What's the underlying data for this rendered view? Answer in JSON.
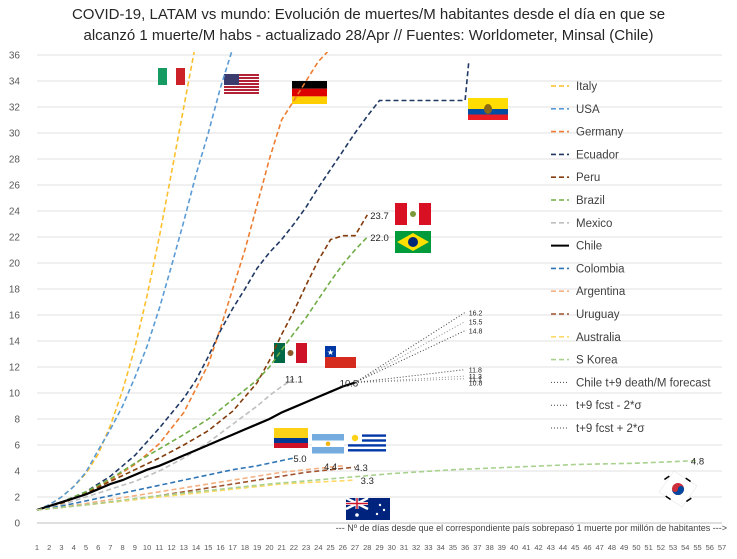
{
  "chart_data": {
    "type": "line",
    "title_line1": "COVID-19, LATAM vs mundo: Evolución de muertes/M habitantes desde el día en que se",
    "title_line2": "alcanzó 1 muerte/M habs - actualizado 28/Apr  // Fuentes: Worldometer, Minsal (Chile)",
    "x_note": "--- Nº de días desde que el correspondiente país sobrepasó 1 muerte por millón de habitantes --->",
    "xlim": [
      1,
      57
    ],
    "ylim": [
      0,
      36
    ],
    "x_ticks": [
      1,
      2,
      3,
      4,
      5,
      6,
      7,
      8,
      9,
      10,
      11,
      12,
      13,
      14,
      15,
      16,
      17,
      18,
      19,
      20,
      21,
      22,
      23,
      24,
      25,
      26,
      27,
      28,
      29,
      30,
      31,
      32,
      33,
      34,
      35,
      36,
      37,
      38,
      39,
      40,
      41,
      42,
      43,
      44,
      45,
      46,
      47,
      48,
      49,
      50,
      51,
      52,
      53,
      54,
      55,
      56,
      57
    ],
    "y_ticks": [
      0,
      2,
      4,
      6,
      8,
      10,
      12,
      14,
      16,
      18,
      20,
      22,
      24,
      26,
      28,
      30,
      32,
      34,
      36
    ],
    "series": [
      {
        "name": "Italy",
        "color": "#fbbf2c",
        "style": "dash",
        "x": [
          1,
          2,
          3,
          4,
          5,
          6,
          7,
          8,
          9,
          10,
          11,
          12,
          13,
          14
        ],
        "y": [
          1.0,
          1.4,
          2.0,
          2.8,
          3.8,
          5.3,
          7.5,
          10.2,
          13.5,
          17.5,
          22.0,
          27.0,
          32.0,
          37.0
        ]
      },
      {
        "name": "USA",
        "color": "#5b9bd5",
        "style": "dash",
        "x": [
          1,
          2,
          3,
          4,
          5,
          6,
          7,
          8,
          9,
          10,
          11,
          12,
          13,
          14,
          15,
          16,
          17
        ],
        "y": [
          1.0,
          1.4,
          2.0,
          2.8,
          3.9,
          5.6,
          7.2,
          9.0,
          11.2,
          13.6,
          16.5,
          19.8,
          23.2,
          26.8,
          30.0,
          33.5,
          36.5
        ]
      },
      {
        "name": "Germany",
        "color": "#ed7d31",
        "style": "dash",
        "x": [
          1,
          3,
          5,
          7,
          9,
          11,
          13,
          15,
          16,
          17,
          18,
          19,
          20,
          21,
          22,
          23,
          24,
          25
        ],
        "y": [
          1.0,
          1.5,
          2.3,
          3.3,
          4.5,
          6.1,
          8.5,
          12.2,
          15.0,
          18.0,
          21.0,
          24.5,
          28.0,
          31.0,
          32.5,
          34.0,
          35.5,
          36.5
        ]
      },
      {
        "name": "Ecuador",
        "color": "#203864",
        "style": "dash",
        "x": [
          1,
          3,
          5,
          7,
          9,
          11,
          13,
          14,
          15,
          16,
          17,
          18,
          19,
          20,
          21,
          22,
          23,
          24,
          25,
          26,
          27,
          28,
          29,
          30,
          31,
          32,
          33,
          34,
          35,
          36,
          36.3
        ],
        "y": [
          1.0,
          1.6,
          2.4,
          3.6,
          5.2,
          7.3,
          9.6,
          11.0,
          12.8,
          14.8,
          16.5,
          18.0,
          19.6,
          20.8,
          21.8,
          23.0,
          24.3,
          25.8,
          27.2,
          28.6,
          30.0,
          31.3,
          32.5,
          32.5,
          32.5,
          32.5,
          32.5,
          32.5,
          32.5,
          32.5,
          35.5
        ]
      },
      {
        "name": "Peru",
        "color": "#843c0c",
        "style": "dash",
        "x": [
          1,
          3,
          5,
          7,
          9,
          11,
          13,
          15,
          17,
          19,
          20,
          21,
          22,
          23,
          24,
          25,
          26,
          27,
          28
        ],
        "y": [
          1.0,
          1.5,
          2.3,
          3.2,
          4.1,
          5.0,
          6.0,
          7.1,
          8.6,
          10.8,
          12.5,
          14.5,
          16.3,
          18.3,
          20.2,
          21.8,
          22.1,
          22.1,
          23.7
        ]
      },
      {
        "name": "Brazil",
        "color": "#70ad47",
        "style": "dash",
        "x": [
          1,
          3,
          5,
          7,
          9,
          11,
          13,
          15,
          17,
          19,
          20,
          21,
          22,
          23,
          24,
          25,
          26,
          27,
          28
        ],
        "y": [
          1.0,
          1.6,
          2.4,
          3.4,
          4.6,
          5.7,
          6.8,
          8.0,
          9.5,
          11.0,
          12.0,
          13.3,
          14.6,
          15.8,
          17.2,
          18.6,
          19.9,
          21.0,
          22.0
        ]
      },
      {
        "name": "Mexico",
        "color": "#bfbfbf",
        "style": "dash",
        "x": [
          1,
          3,
          5,
          7,
          9,
          11,
          13,
          15,
          17,
          19,
          20,
          21,
          22
        ],
        "y": [
          1.0,
          1.4,
          2.0,
          2.6,
          3.2,
          4.0,
          5.0,
          6.2,
          7.6,
          9.0,
          9.8,
          10.5,
          11.1
        ]
      },
      {
        "name": "Chile",
        "color": "#000000",
        "style": "solid",
        "x": [
          1,
          2,
          3,
          4,
          5,
          6,
          7,
          8,
          9,
          10,
          11,
          12,
          13,
          14,
          15,
          16,
          17,
          18,
          19,
          20,
          21,
          22,
          23,
          24,
          25,
          26,
          27
        ],
        "y": [
          1.0,
          1.3,
          1.6,
          1.9,
          2.2,
          2.6,
          3.0,
          3.3,
          3.7,
          4.1,
          4.4,
          4.8,
          5.2,
          5.6,
          6.0,
          6.4,
          6.8,
          7.2,
          7.6,
          8.0,
          8.5,
          8.9,
          9.3,
          9.7,
          10.1,
          10.5,
          10.8
        ]
      },
      {
        "name": "Colombia",
        "color": "#2e75b6",
        "style": "dash",
        "x": [
          1,
          3,
          5,
          7,
          9,
          11,
          13,
          15,
          17,
          19,
          21,
          22
        ],
        "y": [
          1.0,
          1.3,
          1.7,
          2.1,
          2.5,
          2.9,
          3.3,
          3.7,
          4.1,
          4.4,
          4.8,
          5.0
        ]
      },
      {
        "name": "Argentina",
        "color": "#f4b183",
        "style": "dash",
        "x": [
          1,
          3,
          5,
          7,
          9,
          11,
          13,
          15,
          17,
          19,
          21,
          23,
          25,
          26
        ],
        "y": [
          1.0,
          1.2,
          1.5,
          1.8,
          2.1,
          2.4,
          2.7,
          3.0,
          3.3,
          3.6,
          3.9,
          4.1,
          4.3,
          4.4
        ]
      },
      {
        "name": "Uruguay",
        "color": "#a0522d",
        "style": "dash",
        "x": [
          1,
          3,
          5,
          7,
          9,
          11,
          13,
          15,
          17,
          19,
          21,
          23,
          25,
          27
        ],
        "y": [
          1.0,
          1.2,
          1.4,
          1.6,
          1.8,
          2.1,
          2.4,
          2.7,
          3.0,
          3.3,
          3.6,
          3.9,
          4.1,
          4.3
        ]
      },
      {
        "name": "Australia",
        "color": "#ffd966",
        "style": "dash",
        "x": [
          1,
          3,
          5,
          7,
          9,
          11,
          13,
          15,
          17,
          19,
          21,
          23,
          25,
          27
        ],
        "y": [
          1.0,
          1.2,
          1.4,
          1.6,
          1.8,
          2.0,
          2.2,
          2.4,
          2.6,
          2.8,
          3.0,
          3.1,
          3.2,
          3.3
        ]
      },
      {
        "name": "S Korea",
        "color": "#a9d18e",
        "style": "dash",
        "x": [
          1,
          5,
          10,
          15,
          20,
          25,
          30,
          35,
          40,
          45,
          50,
          55
        ],
        "y": [
          1.0,
          1.4,
          2.0,
          2.5,
          3.0,
          3.4,
          3.8,
          4.1,
          4.3,
          4.5,
          4.6,
          4.8
        ]
      },
      {
        "name": "Chile t+9 death/M forecast",
        "color": "#404040",
        "style": "dot",
        "x": [
          27,
          36
        ],
        "y": [
          10.8,
          11.8
        ]
      },
      {
        "name": "t+9 fcst - 2*σ",
        "color": "#404040",
        "style": "dot",
        "x": [
          27,
          36
        ],
        "y": [
          10.8,
          14.8
        ]
      },
      {
        "name": "t+9 fcst + 2*σ",
        "color": "#404040",
        "style": "dot",
        "x": [
          27,
          36
        ],
        "y": [
          10.8,
          16.2
        ]
      }
    ],
    "extra_lines": [
      {
        "color": "#909090",
        "style": "dot",
        "x": [
          27,
          36
        ],
        "y": [
          10.8,
          15.5
        ]
      },
      {
        "color": "#909090",
        "style": "dot",
        "x": [
          27,
          36
        ],
        "y": [
          10.8,
          11.3
        ]
      },
      {
        "color": "#909090",
        "style": "dot",
        "x": [
          27,
          36
        ],
        "y": [
          10.8,
          11.1
        ]
      }
    ],
    "value_labels": [
      {
        "text": "23.7",
        "x": 29,
        "y": 23.7
      },
      {
        "text": "22.0",
        "x": 29,
        "y": 22.0
      },
      {
        "text": "11.1",
        "x": 22,
        "y": 11.1
      },
      {
        "text": "10.8",
        "x": 26.5,
        "y": 10.8
      },
      {
        "text": "5.0",
        "x": 22.5,
        "y": 5.0
      },
      {
        "text": "4.4",
        "x": 25,
        "y": 4.4
      },
      {
        "text": "4.3",
        "x": 27.5,
        "y": 4.3
      },
      {
        "text": "3.3",
        "x": 28,
        "y": 3.3
      },
      {
        "text": "4.8",
        "x": 55,
        "y": 4.8
      }
    ],
    "forecast_labels": [
      {
        "text": "16.2",
        "x": 36.3,
        "y": 16.2
      },
      {
        "text": "15.5",
        "x": 36.3,
        "y": 15.5
      },
      {
        "text": "14.8",
        "x": 36.3,
        "y": 14.8
      },
      {
        "text": "11.8",
        "x": 36.3,
        "y": 11.8
      },
      {
        "text": "11.3",
        "x": 36.3,
        "y": 11.3
      },
      {
        "text": "11.1",
        "x": 36.3,
        "y": 11.1
      },
      {
        "text": "10.8",
        "x": 36.3,
        "y": 10.8
      }
    ],
    "legend_position": "right"
  }
}
